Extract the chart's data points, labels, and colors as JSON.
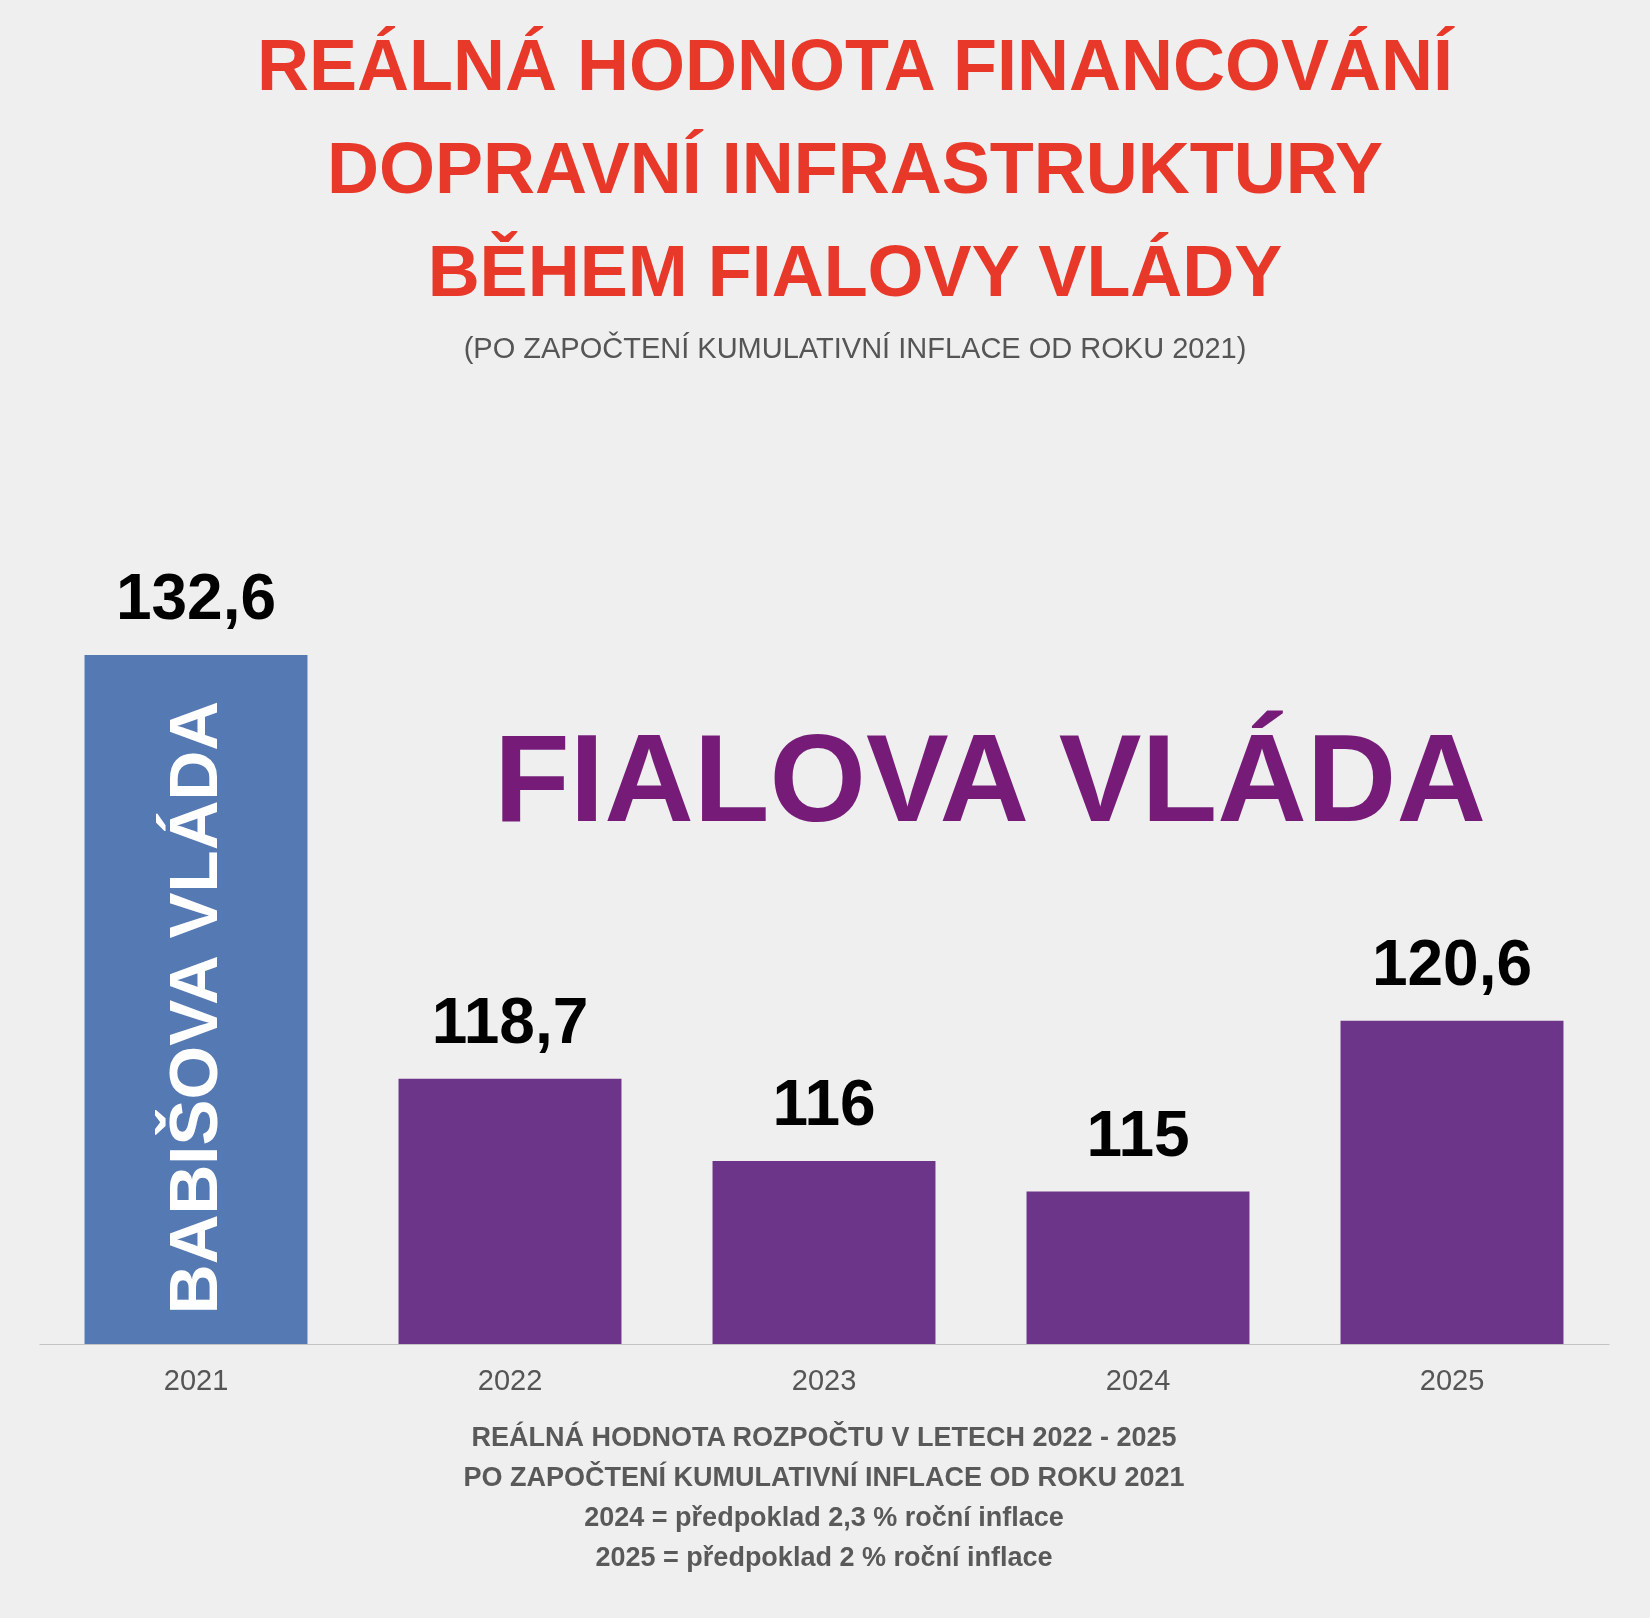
{
  "chart_data": {
    "type": "bar",
    "title": "REÁLNÁ HODNOTA FINANCOVÁNÍ DOPRAVNÍ INFRASTRUKTURY BĚHEM FIALOVY VLÁDY",
    "subtitle": "(PO ZAPOČTENÍ KUMULATIVNÍ INFLACE OD ROKU 2021)",
    "categories": [
      "2021",
      "2022",
      "2023",
      "2024",
      "2025"
    ],
    "values": [
      132.6,
      118.7,
      116,
      115,
      120.6
    ],
    "colors": [
      "#5479b3",
      "#6c3589",
      "#6c3589",
      "#6c3589",
      "#6c3589"
    ],
    "value_labels": [
      "132,6",
      "118,7",
      "116",
      "115",
      "120,6"
    ],
    "ylim": [
      110,
      132.6
    ],
    "tick_labels": "x",
    "annotations": [
      "BABIŠOVA VLÁDA",
      "FIALOVA VLÁDA",
      "REÁLNÁ HODNOTA ROZPOČTU V LETECH 2022 - 2025",
      "PO ZAPOČTENÍ KUMULATIVNÍ INFLACE OD ROKU 2021",
      "2024 = předpoklad 2,3 % roční inflace",
      "2025 = předpoklad 2 % roční inflace"
    ]
  }
}
